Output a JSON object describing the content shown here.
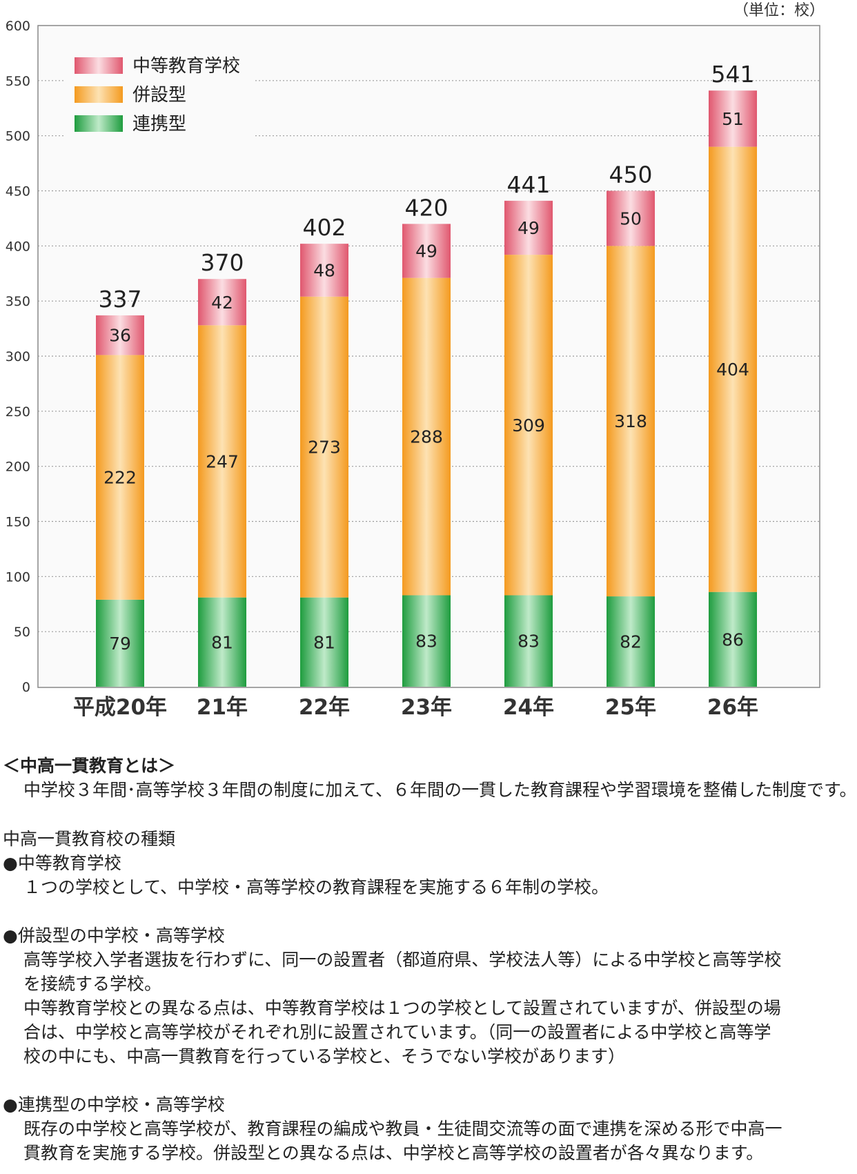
{
  "unit_label": "（単位：校）",
  "chart_data": {
    "type": "bar",
    "stacked": true,
    "categories": [
      "平成20年",
      "21年",
      "22年",
      "23年",
      "24年",
      "25年",
      "26年"
    ],
    "series": [
      {
        "name": "連携型",
        "values": [
          79,
          81,
          81,
          83,
          83,
          82,
          86
        ],
        "color": "#2fb24e"
      },
      {
        "name": "併設型",
        "values": [
          222,
          247,
          273,
          288,
          309,
          318,
          404
        ],
        "color": "#f7a93c"
      },
      {
        "name": "中等教育学校",
        "values": [
          36,
          42,
          48,
          49,
          49,
          50,
          51
        ],
        "color": "#e66f83"
      }
    ],
    "totals": [
      337,
      370,
      402,
      420,
      441,
      450,
      541
    ],
    "legend": [
      "中等教育学校",
      "併設型",
      "連携型"
    ],
    "ylim": [
      0,
      600
    ],
    "yticks": [
      0,
      50,
      100,
      150,
      200,
      250,
      300,
      350,
      400,
      450,
      500,
      550,
      600
    ],
    "grid": true,
    "legend_position": "top-left"
  },
  "notes": {
    "heading": "＜中高一貫教育とは＞",
    "intro": "中学校３年間･高等学校３年間の制度に加えて、６年間の一貫した教育課程や学習環境を整備した制度です。",
    "types_title": "中高一貫教育校の種類",
    "type1_title": "●中等教育学校",
    "type1_desc": "１つの学校として、中学校・高等学校の教育課程を実施する６年制の学校。",
    "type2_title": "●併設型の中学校・高等学校",
    "type2_desc_lines": [
      "高等学校入学者選抜を行わずに、同一の設置者（都道府県、学校法人等）による中学校と高等学校",
      "を接続する学校。",
      "中等教育学校との異なる点は、中等教育学校は１つの学校として設置されていますが、併設型の場",
      "合は、中学校と高等学校がそれぞれ別に設置されています。（同一の設置者による中学校と高等学",
      "校の中にも、中高一貫教育を行っている学校と、そうでない学校があります）"
    ],
    "type3_title": "●連携型の中学校・高等学校",
    "type3_desc_lines": [
      "既存の中学校と高等学校が、教育課程の編成や教員・生徒間交流等の面で連携を深める形で中高一",
      "貫教育を実施する学校。併設型との異なる点は、中学校と高等学校の設置者が各々異なります。"
    ]
  }
}
